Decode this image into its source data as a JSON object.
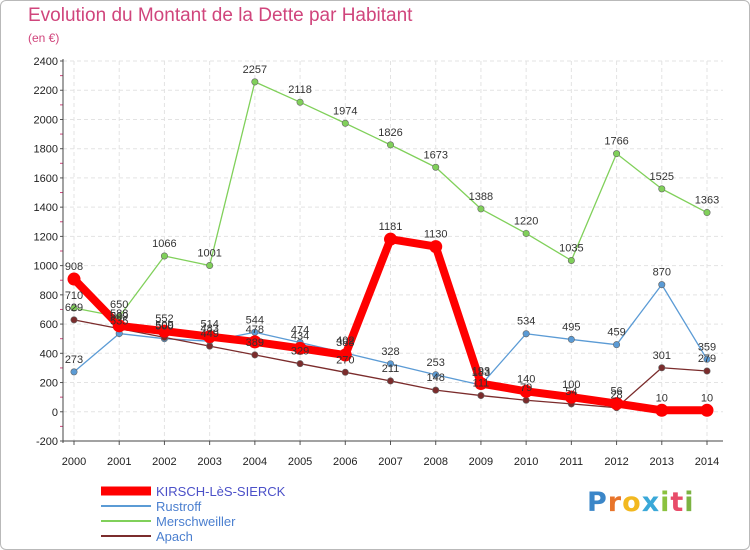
{
  "title": "Evolution du Montant de la Dette par Habitant",
  "subtitle": "(en €)",
  "logo": {
    "letters": [
      "P",
      "r",
      "o",
      "x",
      "i",
      "t",
      "i"
    ],
    "colors": [
      "#3b86c8",
      "#e8742a",
      "#f2b820",
      "#3aa8d8",
      "#8bc23f",
      "#e84c6a",
      "#7cb342"
    ]
  },
  "chart_data": {
    "type": "line",
    "title": "Evolution du Montant de la Dette par Habitant",
    "subtitle": "(en €)",
    "xlabel": "",
    "ylabel": "",
    "x": [
      "2000",
      "2001",
      "2002",
      "2003",
      "2004",
      "2005",
      "2006",
      "2007",
      "2008",
      "2009",
      "2010",
      "2011",
      "2012",
      "2013",
      "2014"
    ],
    "ylim": [
      -200,
      2400
    ],
    "yticks": [
      "-200",
      "0",
      "200",
      "400",
      "600",
      "800",
      "1000",
      "1200",
      "1400",
      "1600",
      "1800",
      "2000",
      "2200",
      "2400"
    ],
    "grid": true,
    "legend": "bottom-left",
    "series": [
      {
        "name": "KIRSCH-LèS-SIERCK",
        "color": "#ff0000",
        "values": [
          908,
          588,
          552,
          514,
          478,
          434,
          388,
          1181,
          1130,
          193,
          140,
          100,
          56,
          10,
          10
        ],
        "labels": [
          "908",
          "588",
          "552",
          "514",
          "478",
          "434",
          "388",
          "1181",
          "1130",
          "193",
          "140",
          "100",
          "56",
          "10",
          "10"
        ]
      },
      {
        "name": "Rustroff",
        "color": "#5b9bd5",
        "values": [
          273,
          535,
          500,
          483,
          544,
          474,
          402,
          328,
          253,
          183,
          534,
          495,
          459,
          870,
          359
        ],
        "labels": [
          "273",
          "535",
          "500",
          "483",
          "544",
          "474",
          "402",
          "328",
          "253",
          "183",
          "534",
          "495",
          "459",
          "870",
          "359"
        ]
      },
      {
        "name": "Merschweiller",
        "color": "#80d05a",
        "values": [
          710,
          650,
          1066,
          1001,
          2257,
          2118,
          1974,
          1826,
          1673,
          1388,
          1220,
          1035,
          1766,
          1525,
          1363
        ],
        "labels": [
          "710",
          "650",
          "1066",
          "1001",
          "2257",
          "2118",
          "1974",
          "1826",
          "1673",
          "1388",
          "1220",
          "1035",
          "1766",
          "1525",
          "1363"
        ]
      },
      {
        "name": "Apach",
        "color": "#7b2c2c",
        "values": [
          629,
          569,
          509,
          449,
          389,
          329,
          270,
          211,
          148,
          111,
          79,
          54,
          28,
          301,
          279
        ],
        "labels": [
          "629",
          "569",
          "509",
          "449",
          "389",
          "329",
          "270",
          "211",
          "148",
          "111",
          "79",
          "54",
          "28",
          "301",
          "279"
        ]
      }
    ]
  }
}
